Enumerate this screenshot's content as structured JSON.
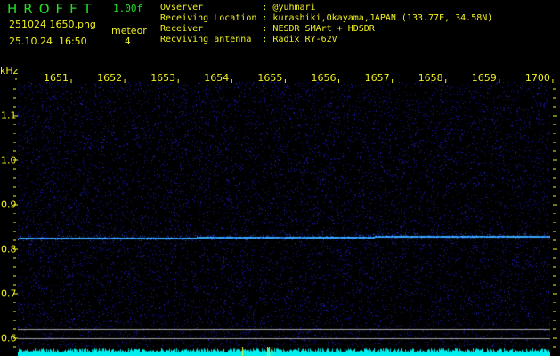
{
  "header": {
    "app_title": "HROFFT",
    "version": "1.00f",
    "file_name": "251024 1650.png",
    "datetime": "25.10.24  16:50",
    "meteor_label": "meteor",
    "meteor_count": "4",
    "info_lines": [
      "Ovserver           : @yuhmari",
      "Receiving Location : kurashiki,Okayama,JAPAN (133.77E, 34.58N)",
      "Receiver           : NESDR SMArt + HDSDR",
      "Recviving antenna  : Radix RY-62V"
    ]
  },
  "axes": {
    "y_unit": "kHz",
    "time_labels": [
      "1651",
      "1652",
      "1653",
      "1654",
      "1655",
      "1656",
      "1657",
      "1658",
      "1659",
      "1700"
    ],
    "freq_labels": [
      "1.1",
      "1.0",
      "0.9",
      "0.8",
      "0.7",
      "0.6"
    ]
  },
  "spectrogram": {
    "signal_freq_khz": 0.828,
    "reference_lines_khz": [
      0.62,
      0.6,
      0.58
    ]
  },
  "colors": {
    "title": "#22e022",
    "text": "#f0f020",
    "noise": "#1818c0",
    "signal": "#3aa8ff",
    "histogram": "#00f0f0",
    "ref_line": "#a0a0a0"
  }
}
